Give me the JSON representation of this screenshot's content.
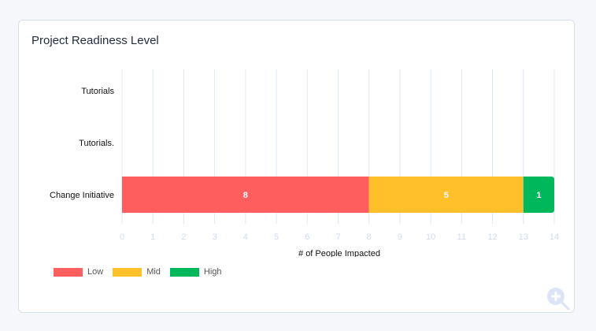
{
  "card": {
    "title": "Project Readiness Level"
  },
  "chart_data": {
    "type": "bar",
    "orientation": "horizontal",
    "stacked": true,
    "categories": [
      "Tutorials",
      "Tutorials.",
      "Change Initiative"
    ],
    "series": [
      {
        "name": "Low",
        "color": "#ff5e5e",
        "values": [
          0,
          0,
          8
        ]
      },
      {
        "name": "Mid",
        "color": "#ffc02a",
        "values": [
          0,
          0,
          5
        ]
      },
      {
        "name": "High",
        "color": "#00b85c",
        "values": [
          0,
          0,
          1
        ]
      }
    ],
    "xlim": [
      0,
      14
    ],
    "xticks": [
      "0",
      "1",
      "2",
      "3",
      "4",
      "5",
      "6",
      "7",
      "8",
      "9",
      "10",
      "11",
      "12",
      "13",
      "14"
    ],
    "xlabel": "# of People Impacted",
    "grid": true,
    "legend_position": "bottom-left"
  },
  "zoom": {
    "icon": "zoom-in-icon"
  }
}
